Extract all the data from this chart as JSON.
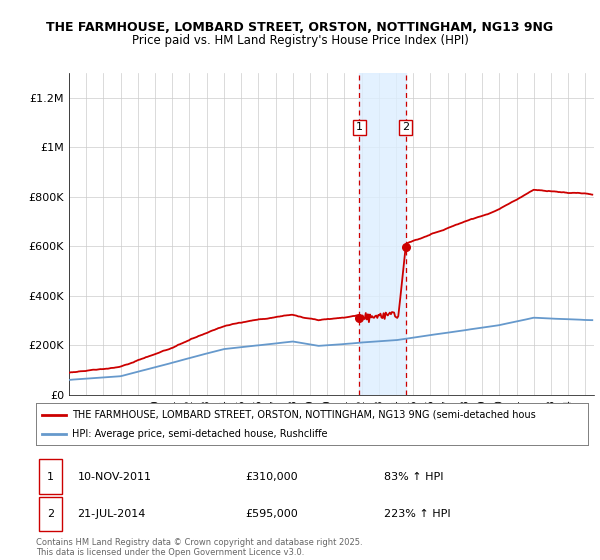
{
  "title_line1": "THE FARMHOUSE, LOMBARD STREET, ORSTON, NOTTINGHAM, NG13 9NG",
  "title_line2": "Price paid vs. HM Land Registry's House Price Index (HPI)",
  "ylabel_ticks": [
    "£0",
    "£200K",
    "£400K",
    "£600K",
    "£800K",
    "£1M",
    "£1.2M"
  ],
  "ytick_values": [
    0,
    200000,
    400000,
    600000,
    800000,
    1000000,
    1200000
  ],
  "ylim": [
    0,
    1300000
  ],
  "xlim_start": 1995.0,
  "xlim_end": 2025.5,
  "purchase1_date": 2011.87,
  "purchase1_price": 310000,
  "purchase2_date": 2014.55,
  "purchase2_price": 595000,
  "purchase1_date_str": "10-NOV-2011",
  "purchase2_date_str": "21-JUL-2014",
  "purchase1_hpi_pct": "83% ↑ HPI",
  "purchase2_hpi_pct": "223% ↑ HPI",
  "red_color": "#cc0000",
  "blue_color": "#6699cc",
  "shade_color": "#ddeeff",
  "legend1_text": "THE FARMHOUSE, LOMBARD STREET, ORSTON, NOTTINGHAM, NG13 9NG (semi-detached hous",
  "legend2_text": "HPI: Average price, semi-detached house, Rushcliffe",
  "footer_text": "Contains HM Land Registry data © Crown copyright and database right 2025.\nThis data is licensed under the Open Government Licence v3.0."
}
